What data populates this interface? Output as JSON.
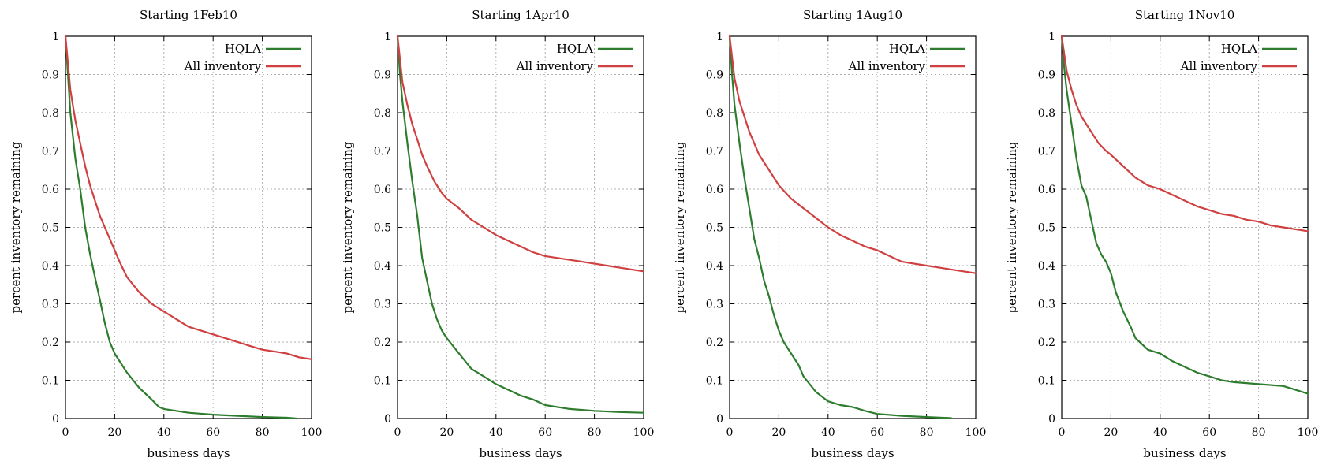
{
  "chart_data": [
    {
      "type": "line",
      "title": "Starting 1Feb10",
      "xlabel": "business days",
      "ylabel": "percent inventory remaining",
      "xlim": [
        0,
        100
      ],
      "ylim": [
        0,
        1
      ],
      "xticks": [
        "0",
        "20",
        "40",
        "60",
        "80",
        "100"
      ],
      "yticks": [
        "0",
        "0.1",
        "0.2",
        "0.3",
        "0.4",
        "0.5",
        "0.6",
        "0.7",
        "0.8",
        "0.9",
        "1"
      ],
      "grid": true,
      "legend": "top-right",
      "series": [
        {
          "name": "HQLA",
          "color": "#2e7d2e",
          "x": [
            0,
            2,
            4,
            6,
            8,
            10,
            12,
            14,
            16,
            18,
            20,
            25,
            30,
            35,
            38,
            40,
            50,
            60,
            70,
            80,
            90,
            94
          ],
          "y": [
            1,
            0.8,
            0.68,
            0.6,
            0.5,
            0.43,
            0.37,
            0.31,
            0.25,
            0.2,
            0.17,
            0.12,
            0.08,
            0.05,
            0.03,
            0.025,
            0.015,
            0.01,
            0.007,
            0.004,
            0.002,
            0.0
          ]
        },
        {
          "name": "All inventory",
          "color": "#d04040",
          "x": [
            0,
            2,
            4,
            6,
            8,
            10,
            12,
            14,
            16,
            18,
            20,
            22,
            25,
            30,
            35,
            40,
            45,
            50,
            55,
            60,
            65,
            70,
            75,
            80,
            85,
            90,
            95,
            100
          ],
          "y": [
            1,
            0.86,
            0.78,
            0.72,
            0.66,
            0.61,
            0.57,
            0.53,
            0.5,
            0.47,
            0.44,
            0.41,
            0.37,
            0.33,
            0.3,
            0.28,
            0.26,
            0.24,
            0.23,
            0.22,
            0.21,
            0.2,
            0.19,
            0.18,
            0.175,
            0.17,
            0.16,
            0.155
          ]
        }
      ]
    },
    {
      "type": "line",
      "title": "Starting 1Apr10",
      "xlabel": "business days",
      "ylabel": "percent inventory remaining",
      "xlim": [
        0,
        100
      ],
      "ylim": [
        0,
        1
      ],
      "xticks": [
        "0",
        "20",
        "40",
        "60",
        "80",
        "100"
      ],
      "yticks": [
        "0",
        "0.1",
        "0.2",
        "0.3",
        "0.4",
        "0.5",
        "0.6",
        "0.7",
        "0.8",
        "0.9",
        "1"
      ],
      "grid": true,
      "legend": "top-right",
      "series": [
        {
          "name": "HQLA",
          "color": "#2e7d2e",
          "x": [
            0,
            1,
            2,
            4,
            6,
            8,
            10,
            12,
            14,
            16,
            18,
            20,
            25,
            30,
            35,
            40,
            45,
            50,
            55,
            60,
            70,
            80,
            90,
            100
          ],
          "y": [
            1,
            0.9,
            0.83,
            0.72,
            0.62,
            0.53,
            0.42,
            0.36,
            0.3,
            0.26,
            0.23,
            0.21,
            0.17,
            0.13,
            0.11,
            0.09,
            0.075,
            0.06,
            0.05,
            0.035,
            0.025,
            0.02,
            0.017,
            0.015
          ]
        },
        {
          "name": "All inventory",
          "color": "#d04040",
          "x": [
            0,
            2,
            4,
            6,
            8,
            10,
            12,
            15,
            18,
            20,
            25,
            30,
            35,
            40,
            45,
            50,
            55,
            60,
            65,
            70,
            75,
            80,
            85,
            90,
            95,
            100
          ],
          "y": [
            1,
            0.88,
            0.82,
            0.77,
            0.73,
            0.69,
            0.66,
            0.62,
            0.59,
            0.575,
            0.55,
            0.52,
            0.5,
            0.48,
            0.465,
            0.45,
            0.435,
            0.425,
            0.42,
            0.415,
            0.41,
            0.405,
            0.4,
            0.395,
            0.39,
            0.385
          ]
        }
      ]
    },
    {
      "type": "line",
      "title": "Starting 1Aug10",
      "xlabel": "business days",
      "ylabel": "percent inventory remaining",
      "xlim": [
        0,
        100
      ],
      "ylim": [
        0,
        1
      ],
      "xticks": [
        "0",
        "20",
        "40",
        "60",
        "80",
        "100"
      ],
      "yticks": [
        "0",
        "0.1",
        "0.2",
        "0.3",
        "0.4",
        "0.5",
        "0.6",
        "0.7",
        "0.8",
        "0.9",
        "1"
      ],
      "grid": true,
      "legend": "top-right",
      "series": [
        {
          "name": "HQLA",
          "color": "#2e7d2e",
          "x": [
            0,
            1,
            2,
            4,
            6,
            8,
            10,
            12,
            14,
            16,
            18,
            20,
            22,
            25,
            28,
            30,
            35,
            40,
            45,
            50,
            55,
            60,
            70,
            80,
            90
          ],
          "y": [
            1,
            0.9,
            0.82,
            0.72,
            0.63,
            0.55,
            0.47,
            0.42,
            0.36,
            0.32,
            0.27,
            0.23,
            0.2,
            0.17,
            0.14,
            0.11,
            0.07,
            0.045,
            0.035,
            0.03,
            0.02,
            0.012,
            0.007,
            0.004,
            0.001
          ]
        },
        {
          "name": "All inventory",
          "color": "#d04040",
          "x": [
            0,
            2,
            4,
            6,
            8,
            10,
            12,
            15,
            18,
            20,
            25,
            30,
            35,
            40,
            45,
            50,
            55,
            60,
            65,
            70,
            75,
            80,
            85,
            90,
            95,
            100
          ],
          "y": [
            1,
            0.89,
            0.83,
            0.79,
            0.75,
            0.72,
            0.69,
            0.66,
            0.63,
            0.61,
            0.575,
            0.55,
            0.525,
            0.5,
            0.48,
            0.465,
            0.45,
            0.44,
            0.425,
            0.41,
            0.405,
            0.4,
            0.395,
            0.39,
            0.385,
            0.38
          ]
        }
      ]
    },
    {
      "type": "line",
      "title": "Starting 1Nov10",
      "xlabel": "business days",
      "ylabel": "percent inventory remaining",
      "xlim": [
        0,
        100
      ],
      "ylim": [
        0,
        1
      ],
      "xticks": [
        "0",
        "20",
        "40",
        "60",
        "80",
        "100"
      ],
      "yticks": [
        "0",
        "0.1",
        "0.2",
        "0.3",
        "0.4",
        "0.5",
        "0.6",
        "0.7",
        "0.8",
        "0.9",
        "1"
      ],
      "grid": true,
      "legend": "top-right",
      "series": [
        {
          "name": "HQLA",
          "color": "#2e7d2e",
          "x": [
            0,
            1,
            2,
            4,
            6,
            8,
            10,
            12,
            14,
            16,
            18,
            20,
            22,
            25,
            28,
            30,
            35,
            40,
            45,
            50,
            55,
            60,
            65,
            70,
            80,
            90,
            95,
            100
          ],
          "y": [
            1,
            0.92,
            0.86,
            0.77,
            0.68,
            0.61,
            0.58,
            0.52,
            0.46,
            0.43,
            0.41,
            0.38,
            0.33,
            0.28,
            0.24,
            0.21,
            0.18,
            0.17,
            0.15,
            0.135,
            0.12,
            0.11,
            0.1,
            0.095,
            0.09,
            0.085,
            0.075,
            0.065
          ]
        },
        {
          "name": "All inventory",
          "color": "#d04040",
          "x": [
            0,
            2,
            4,
            6,
            8,
            10,
            12,
            15,
            18,
            20,
            25,
            30,
            35,
            40,
            45,
            50,
            55,
            60,
            65,
            70,
            75,
            80,
            85,
            90,
            95,
            100
          ],
          "y": [
            1,
            0.91,
            0.86,
            0.82,
            0.79,
            0.77,
            0.75,
            0.72,
            0.7,
            0.69,
            0.66,
            0.63,
            0.61,
            0.6,
            0.585,
            0.57,
            0.555,
            0.545,
            0.535,
            0.53,
            0.52,
            0.515,
            0.505,
            0.5,
            0.495,
            0.49
          ]
        }
      ]
    }
  ]
}
